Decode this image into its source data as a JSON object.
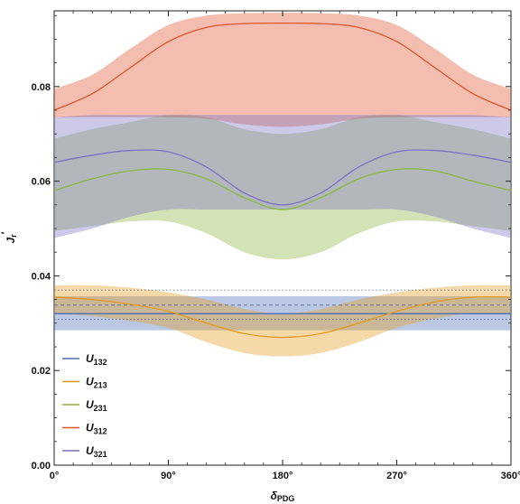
{
  "chart_data": {
    "type": "line",
    "xlabel": "δ",
    "xlabel_sub": "PDG",
    "ylabel": "J",
    "ylabel_sub": "r",
    "ylabel_prime": "′",
    "xlim": [
      0,
      360
    ],
    "ylim": [
      0,
      0.096
    ],
    "x_ticks": [
      {
        "value": 0,
        "label": "0°"
      },
      {
        "value": 90,
        "label": "90°"
      },
      {
        "value": 180,
        "label": "180°"
      },
      {
        "value": 270,
        "label": "270°"
      },
      {
        "value": 360,
        "label": "360°"
      }
    ],
    "y_ticks": [
      {
        "value": 0.0,
        "label": "0.00"
      },
      {
        "value": 0.02,
        "label": "0.02"
      },
      {
        "value": 0.04,
        "label": "0.04"
      },
      {
        "value": 0.06,
        "label": "0.06"
      },
      {
        "value": 0.08,
        "label": "0.08"
      }
    ],
    "x": [
      0,
      30,
      60,
      90,
      120,
      150,
      180,
      210,
      240,
      270,
      300,
      330,
      360
    ],
    "series": [
      {
        "name": "U",
        "sub": "132",
        "color": "#4a6fb5",
        "values": [
          0.032,
          0.032,
          0.032,
          0.032,
          0.032,
          0.032,
          0.032,
          0.032,
          0.032,
          0.032,
          0.032,
          0.032,
          0.032
        ],
        "lower": [
          0.0285,
          0.0285,
          0.0285,
          0.0285,
          0.0285,
          0.0285,
          0.0285,
          0.0285,
          0.0285,
          0.0285,
          0.0285,
          0.0285,
          0.0285
        ],
        "upper": [
          0.0357,
          0.0357,
          0.0357,
          0.0357,
          0.0357,
          0.0357,
          0.0357,
          0.0357,
          0.0357,
          0.0357,
          0.0357,
          0.0357,
          0.0357
        ]
      },
      {
        "name": "U",
        "sub": "213",
        "color": "#e69a1c",
        "values": [
          0.0355,
          0.035,
          0.034,
          0.0325,
          0.03,
          0.0278,
          0.027,
          0.0278,
          0.03,
          0.0325,
          0.0345,
          0.0355,
          0.0355
        ],
        "lower": [
          0.032,
          0.0315,
          0.0305,
          0.029,
          0.026,
          0.0237,
          0.023,
          0.0237,
          0.026,
          0.029,
          0.031,
          0.032,
          0.032
        ],
        "upper": [
          0.038,
          0.038,
          0.0375,
          0.0365,
          0.035,
          0.033,
          0.032,
          0.033,
          0.035,
          0.0365,
          0.0375,
          0.038,
          0.038
        ]
      },
      {
        "name": "U",
        "sub": "231",
        "color": "#8fb640",
        "values": [
          0.058,
          0.0605,
          0.0622,
          0.0625,
          0.0605,
          0.0565,
          0.054,
          0.0565,
          0.0605,
          0.0625,
          0.0622,
          0.06,
          0.058
        ],
        "lower": [
          0.0495,
          0.0505,
          0.0515,
          0.0515,
          0.049,
          0.045,
          0.0435,
          0.045,
          0.049,
          0.0515,
          0.0515,
          0.0505,
          0.0495
        ],
        "upper": [
          0.069,
          0.071,
          0.0725,
          0.074,
          0.0735,
          0.071,
          0.07,
          0.071,
          0.0735,
          0.074,
          0.0725,
          0.071,
          0.069
        ]
      },
      {
        "name": "U",
        "sub": "312",
        "color": "#e0542c",
        "values": [
          0.075,
          0.0785,
          0.084,
          0.0895,
          0.0925,
          0.0933,
          0.0934,
          0.0933,
          0.0925,
          0.0895,
          0.084,
          0.0785,
          0.075
        ],
        "lower": [
          0.0735,
          0.0735,
          0.0735,
          0.0735,
          0.0732,
          0.072,
          0.0715,
          0.072,
          0.0732,
          0.0735,
          0.0735,
          0.0735,
          0.0735
        ],
        "upper": [
          0.0795,
          0.0825,
          0.088,
          0.093,
          0.095,
          0.0955,
          0.0956,
          0.0955,
          0.095,
          0.093,
          0.088,
          0.0825,
          0.0795
        ]
      },
      {
        "name": "U",
        "sub": "321",
        "color": "#7b72c4",
        "values": [
          0.064,
          0.0655,
          0.0665,
          0.0662,
          0.063,
          0.0575,
          0.055,
          0.0575,
          0.063,
          0.0662,
          0.0665,
          0.0655,
          0.064
        ],
        "lower": [
          0.048,
          0.05,
          0.0525,
          0.054,
          0.054,
          0.054,
          0.054,
          0.054,
          0.054,
          0.054,
          0.0525,
          0.05,
          0.048
        ],
        "upper": [
          0.0735,
          0.074,
          0.074,
          0.074,
          0.074,
          0.074,
          0.074,
          0.074,
          0.074,
          0.074,
          0.074,
          0.074,
          0.0735
        ]
      }
    ],
    "reference_lines": [
      {
        "style": "dashed",
        "value": 0.0338
      },
      {
        "style": "dotted",
        "value": 0.037
      },
      {
        "style": "dotted",
        "value": 0.0308
      }
    ],
    "legend_placement": "bottom-left",
    "grid": false
  }
}
